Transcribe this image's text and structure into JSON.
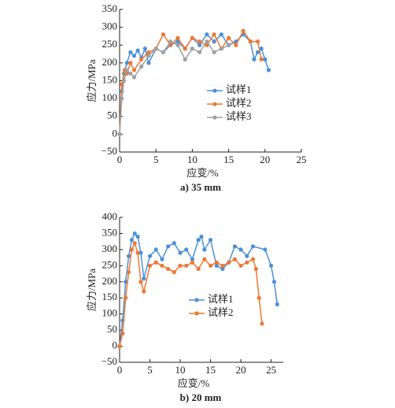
{
  "chart_data": [
    {
      "type": "line",
      "caption": "a) 35 mm",
      "xlabel": "应变/%",
      "ylabel": "应力/MPa",
      "xlim": [
        0,
        25
      ],
      "xticks": [
        0,
        5,
        10,
        15,
        20,
        25
      ],
      "ylim": [
        -50,
        350
      ],
      "yticks": [
        {
          "value": -50,
          "label": "−50"
        },
        0,
        50,
        100,
        150,
        200,
        250,
        300,
        350
      ],
      "legend": "center right",
      "series": [
        {
          "name": "试样1",
          "color": "#4a90d9",
          "x": [
            0,
            0.3,
            0.6,
            1,
            1.5,
            2,
            2.5,
            3,
            3.5,
            4,
            5,
            6,
            7,
            8,
            9,
            10,
            11,
            12,
            13,
            14,
            15,
            16,
            17,
            18,
            18.5,
            19,
            19.5,
            20,
            20.5
          ],
          "values": [
            0,
            120,
            170,
            200,
            230,
            220,
            235,
            215,
            240,
            200,
            240,
            230,
            250,
            260,
            240,
            270,
            250,
            280,
            260,
            280,
            250,
            260,
            280,
            260,
            210,
            230,
            240,
            210,
            180
          ]
        },
        {
          "name": "试样2",
          "color": "#ee7733",
          "x": [
            0,
            0.3,
            0.7,
            1,
            1.5,
            2,
            3,
            4,
            5,
            6,
            7,
            8,
            9,
            10,
            11,
            12,
            13,
            14,
            15,
            16,
            17,
            18,
            19,
            19.5
          ],
          "values": [
            0,
            140,
            180,
            170,
            200,
            180,
            210,
            230,
            240,
            280,
            250,
            270,
            240,
            270,
            260,
            250,
            280,
            240,
            270,
            250,
            290,
            260,
            260,
            210
          ]
        },
        {
          "name": "试样3",
          "color": "#a0a0a0",
          "x": [
            0,
            0.3,
            0.6,
            1,
            1.5,
            2,
            3,
            4,
            5,
            6,
            7,
            8,
            9,
            10,
            11,
            12,
            13,
            14,
            15
          ],
          "values": [
            0,
            100,
            150,
            180,
            170,
            160,
            190,
            220,
            240,
            230,
            260,
            250,
            210,
            240,
            230,
            260,
            230,
            240,
            250
          ]
        }
      ]
    },
    {
      "type": "line",
      "caption": "b) 20 mm",
      "xlabel": "应变/%",
      "ylabel": "应力/MPa",
      "xlim": [
        0,
        27
      ],
      "xticks": [
        0,
        5,
        10,
        15,
        20,
        25
      ],
      "ylim": [
        -50,
        400
      ],
      "yticks": [
        {
          "value": -50,
          "label": "−50"
        },
        0,
        50,
        100,
        150,
        200,
        250,
        300,
        350,
        400
      ],
      "legend": "center right",
      "series": [
        {
          "name": "试样1",
          "color": "#4a90d9",
          "x": [
            0,
            0.5,
            1,
            1.5,
            2,
            2.5,
            3,
            3.5,
            4,
            5,
            6,
            7,
            8,
            9,
            10,
            11,
            12,
            13,
            13.5,
            14,
            15,
            16,
            17,
            18,
            19,
            20,
            21,
            22,
            24,
            25,
            25.5,
            26
          ],
          "values": [
            0,
            80,
            200,
            280,
            330,
            350,
            340,
            290,
            210,
            280,
            300,
            270,
            310,
            320,
            290,
            300,
            270,
            330,
            340,
            300,
            330,
            250,
            240,
            260,
            310,
            300,
            280,
            310,
            300,
            250,
            200,
            130
          ]
        },
        {
          "name": "试样2",
          "color": "#ee7733",
          "x": [
            0,
            0.5,
            1,
            1.5,
            2,
            2.5,
            3,
            3.5,
            4,
            5,
            6,
            7,
            8,
            9,
            10,
            11,
            12,
            13,
            14,
            15,
            16,
            17,
            18,
            19,
            20,
            21,
            22,
            22.5,
            23,
            23.5
          ],
          "values": [
            0,
            40,
            150,
            230,
            300,
            320,
            290,
            200,
            170,
            250,
            260,
            250,
            240,
            230,
            250,
            250,
            260,
            240,
            270,
            250,
            260,
            250,
            260,
            270,
            250,
            260,
            270,
            240,
            150,
            70
          ]
        }
      ]
    }
  ]
}
